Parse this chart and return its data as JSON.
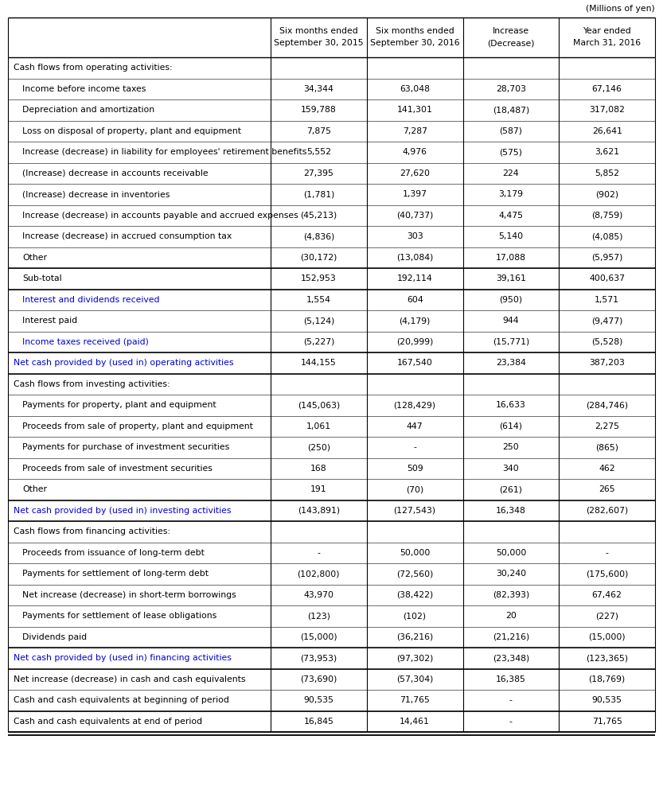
{
  "units_note": "(Millions of yen)",
  "col_headers": [
    [
      "Six months ended",
      "September 30, 2015"
    ],
    [
      "Six months ended",
      "September 30, 2016"
    ],
    [
      "Increase",
      "(Decrease)"
    ],
    [
      "Year ended",
      "March 31, 2016"
    ]
  ],
  "rows": [
    {
      "label": "Cash flows from operating activities:",
      "values": [
        "",
        "",
        "",
        ""
      ],
      "type": "section"
    },
    {
      "label": "  Income before income taxes",
      "values": [
        "34,344",
        "63,048",
        "28,703",
        "67,146"
      ],
      "type": "data"
    },
    {
      "label": "  Depreciation and amortization",
      "values": [
        "159,788",
        "141,301",
        "(18,487)",
        "317,082"
      ],
      "type": "data"
    },
    {
      "label": "  Loss on disposal of property, plant and equipment",
      "values": [
        "7,875",
        "7,287",
        "(587)",
        "26,641"
      ],
      "type": "data"
    },
    {
      "label": "  Increase (decrease) in liability for employees' retirement benefits",
      "values": [
        "5,552",
        "4,976",
        "(575)",
        "3,621"
      ],
      "type": "data"
    },
    {
      "label": "  (Increase) decrease in accounts receivable",
      "values": [
        "27,395",
        "27,620",
        "224",
        "5,852"
      ],
      "type": "data"
    },
    {
      "label": "  (Increase) decrease in inventories",
      "values": [
        "(1,781)",
        "1,397",
        "3,179",
        "(902)"
      ],
      "type": "data"
    },
    {
      "label": "  Increase (decrease) in accounts payable and accrued expenses",
      "values": [
        "(45,213)",
        "(40,737)",
        "4,475",
        "(8,759)"
      ],
      "type": "data"
    },
    {
      "label": "  Increase (decrease) in accrued consumption tax",
      "values": [
        "(4,836)",
        "303",
        "5,140",
        "(4,085)"
      ],
      "type": "data"
    },
    {
      "label": "  Other",
      "values": [
        "(30,172)",
        "(13,084)",
        "17,088",
        "(5,957)"
      ],
      "type": "data"
    },
    {
      "label": "  Sub-total",
      "values": [
        "152,953",
        "192,114",
        "39,161",
        "400,637"
      ],
      "type": "subtotal"
    },
    {
      "label": "  Interest and dividends received",
      "values": [
        "1,554",
        "604",
        "(950)",
        "1,571"
      ],
      "type": "data",
      "blue": true
    },
    {
      "label": "  Interest paid",
      "values": [
        "(5,124)",
        "(4,179)",
        "944",
        "(9,477)"
      ],
      "type": "data"
    },
    {
      "label": "  Income taxes received (paid)",
      "values": [
        "(5,227)",
        "(20,999)",
        "(15,771)",
        "(5,528)"
      ],
      "type": "data",
      "blue": true
    },
    {
      "label": "Net cash provided by (used in) operating activities",
      "values": [
        "144,155",
        "167,540",
        "23,384",
        "387,203"
      ],
      "type": "net",
      "blue": true
    },
    {
      "label": "Cash flows from investing activities:",
      "values": [
        "",
        "",
        "",
        ""
      ],
      "type": "section"
    },
    {
      "label": "  Payments for property, plant and equipment",
      "values": [
        "(145,063)",
        "(128,429)",
        "16,633",
        "(284,746)"
      ],
      "type": "data"
    },
    {
      "label": "  Proceeds from sale of property, plant and equipment",
      "values": [
        "1,061",
        "447",
        "(614)",
        "2,275"
      ],
      "type": "data"
    },
    {
      "label": "  Payments for purchase of investment securities",
      "values": [
        "(250)",
        "-",
        "250",
        "(865)"
      ],
      "type": "data"
    },
    {
      "label": "  Proceeds from sale of investment securities",
      "values": [
        "168",
        "509",
        "340",
        "462"
      ],
      "type": "data"
    },
    {
      "label": "  Other",
      "values": [
        "191",
        "(70)",
        "(261)",
        "265"
      ],
      "type": "data"
    },
    {
      "label": "Net cash provided by (used in) investing activities",
      "values": [
        "(143,891)",
        "(127,543)",
        "16,348",
        "(282,607)"
      ],
      "type": "net",
      "blue": true
    },
    {
      "label": "Cash flows from financing activities:",
      "values": [
        "",
        "",
        "",
        ""
      ],
      "type": "section"
    },
    {
      "label": "  Proceeds from issuance of long-term debt",
      "values": [
        "-",
        "50,000",
        "50,000",
        "-"
      ],
      "type": "data"
    },
    {
      "label": "  Payments for settlement of long-term debt",
      "values": [
        "(102,800)",
        "(72,560)",
        "30,240",
        "(175,600)"
      ],
      "type": "data"
    },
    {
      "label": "  Net increase (decrease) in short-term borrowings",
      "values": [
        "43,970",
        "(38,422)",
        "(82,393)",
        "67,462"
      ],
      "type": "data"
    },
    {
      "label": "  Payments for settlement of lease obligations",
      "values": [
        "(123)",
        "(102)",
        "20",
        "(227)"
      ],
      "type": "data"
    },
    {
      "label": "  Dividends paid",
      "values": [
        "(15,000)",
        "(36,216)",
        "(21,216)",
        "(15,000)"
      ],
      "type": "data"
    },
    {
      "label": "Net cash provided by (used in) financing activities",
      "values": [
        "(73,953)",
        "(97,302)",
        "(23,348)",
        "(123,365)"
      ],
      "type": "net",
      "blue": true
    },
    {
      "label": "Net increase (decrease) in cash and cash equivalents",
      "values": [
        "(73,690)",
        "(57,304)",
        "16,385",
        "(18,769)"
      ],
      "type": "plain"
    },
    {
      "label": "Cash and cash equivalents at beginning of period",
      "values": [
        "90,535",
        "71,765",
        "-",
        "90,535"
      ],
      "type": "plain"
    },
    {
      "label": "Cash and cash equivalents at end of period",
      "values": [
        "16,845",
        "14,461",
        "-",
        "71,765"
      ],
      "type": "bottom"
    }
  ],
  "bg_color": "#ffffff",
  "text_color": "#000000",
  "blue_text": "#0000cd"
}
